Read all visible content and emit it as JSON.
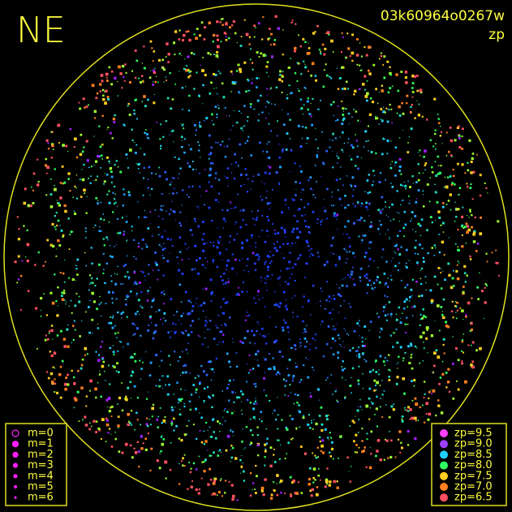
{
  "label": "NE",
  "frame_id": "03k60964o0267w",
  "color_key": "zp",
  "magnitude_legend": [
    "m=0",
    "m=1",
    "m=2",
    "m=3",
    "m=4",
    "m=5",
    "m=6"
  ],
  "zp_legend": [
    {
      "label": "zp=9.5",
      "color": "#ff40ff"
    },
    {
      "label": "zp=9.0",
      "color": "#a040ff"
    },
    {
      "label": "zp=8.5",
      "color": "#20d0ff"
    },
    {
      "label": "zp=8.0",
      "color": "#30ff60"
    },
    {
      "label": "zp=7.5",
      "color": "#ffd020"
    },
    {
      "label": "zp=7.0",
      "color": "#ff8020"
    },
    {
      "label": "zp=6.5",
      "color": "#ff5060"
    }
  ]
}
